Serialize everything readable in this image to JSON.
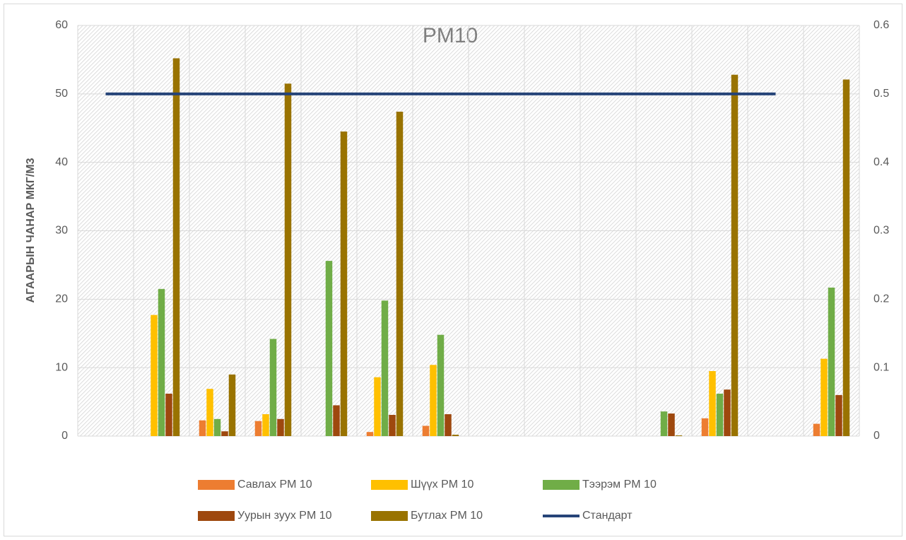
{
  "chart_data": {
    "type": "bar",
    "title": "PM10",
    "y_label": "АГААРЫН ЧАНАР МКГ/М3",
    "categories": [
      null,
      null,
      null,
      null,
      null,
      null,
      null,
      null,
      null,
      null,
      null,
      null,
      null,
      null
    ],
    "series": [
      {
        "name": "Савлах PM 10",
        "color": "#ed7d31",
        "values": [
          null,
          0,
          2.3,
          2.2,
          null,
          0.6,
          1.5,
          null,
          null,
          null,
          null,
          2.6,
          null,
          1.8
        ]
      },
      {
        "name": "Шүүх PM 10",
        "color": "#ffc000",
        "values": [
          null,
          17.7,
          6.9,
          3.2,
          null,
          8.6,
          10.4,
          null,
          null,
          null,
          null,
          9.5,
          null,
          11.3
        ]
      },
      {
        "name": "Тээрэм PM 10",
        "color": "#70ad47",
        "values": [
          null,
          21.5,
          2.5,
          14.2,
          25.6,
          19.8,
          14.8,
          null,
          null,
          null,
          3.6,
          6.2,
          null,
          21.7
        ]
      },
      {
        "name": "Уурын зуух PM 10",
        "color": "#9e480e",
        "values": [
          null,
          6.2,
          0.7,
          2.5,
          4.5,
          3.1,
          3.2,
          null,
          null,
          null,
          3.3,
          6.8,
          null,
          6.0
        ]
      },
      {
        "name": "Бутлах PM 10",
        "color": "#997300",
        "values": [
          null,
          55.2,
          9.0,
          51.5,
          44.5,
          47.4,
          0.2,
          null,
          null,
          null,
          0.1,
          52.8,
          null,
          52.1
        ]
      },
      {
        "name": "Стандарт",
        "color": "#264478",
        "type": "line",
        "values": [
          50,
          50,
          50,
          50,
          50,
          50,
          50,
          50,
          50,
          50,
          50,
          50,
          50,
          null
        ]
      }
    ],
    "ylim": [
      0,
      60
    ],
    "yticks": [
      0,
      10,
      20,
      30,
      40,
      50,
      60
    ],
    "y2lim": [
      0,
      0.6
    ],
    "y2ticks": [
      0,
      0.1,
      0.2,
      0.3,
      0.4,
      0.5,
      0.6
    ],
    "grid": true,
    "legend": "bottom"
  }
}
